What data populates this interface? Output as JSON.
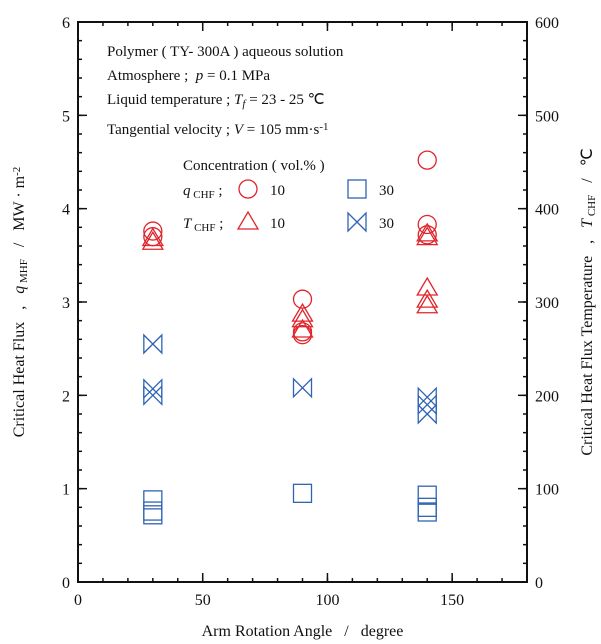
{
  "chart_data": {
    "type": "scatter",
    "xlabel": [
      {
        "text": "Arm Rotation Angle   /   degree"
      }
    ],
    "ylabel": [
      {
        "text": "Critical Heat Flux   ,   "
      },
      {
        "text": "q",
        "italic": true
      },
      {
        "text": " MHF",
        "sub": true
      },
      {
        "text": "   /   MW · m"
      },
      {
        "text": "-2",
        "sup": true
      }
    ],
    "y2label": [
      {
        "text": "Critical Heat Flux Temperature   ,   "
      },
      {
        "text": "T",
        "italic": true
      },
      {
        "text": " CHF",
        "sub": true
      },
      {
        "text": "   /   ℃"
      }
    ],
    "xlim": [
      0,
      180
    ],
    "xticks": [
      0,
      50,
      100,
      150
    ],
    "ylim": [
      0,
      6
    ],
    "yticks": [
      0,
      1,
      2,
      3,
      4,
      5,
      6
    ],
    "y2lim": [
      0,
      600
    ],
    "y2ticks": [
      0,
      100,
      200,
      300,
      400,
      500,
      600
    ],
    "minor_ticks": {
      "x": 10,
      "y": 0.2,
      "y2": 20
    },
    "annotations": [
      [
        {
          "text": "Polymer ( TY- 300A ) aqueous solution"
        }
      ],
      [
        {
          "text": "Atmosphere ;  "
        },
        {
          "text": "p",
          "italic": true
        },
        {
          "text": " = 0.1 MPa"
        }
      ],
      [
        {
          "text": "Liquid temperature ; "
        },
        {
          "text": "T",
          "italic": true
        },
        {
          "text": "f",
          "italic": true,
          "sub": true
        },
        {
          "text": " = 23 - 25 ℃"
        }
      ],
      [
        {
          "text": "Tangential velocity ; "
        },
        {
          "text": "V",
          "italic": true
        },
        {
          "text": " = 105 mm·s"
        },
        {
          "text": "-1",
          "sup": true
        }
      ]
    ],
    "legend_title": "Concentration ( vol.% )",
    "groups": [
      {
        "label": [
          {
            "text": "q",
            "italic": true
          },
          {
            "text": " CHF",
            "sub": true
          },
          {
            "text": " ;"
          }
        ],
        "series": [
          {
            "name": "10",
            "marker": "circle",
            "color": "#e0242b",
            "axis": "y",
            "x": [
              30,
              30,
              90,
              90,
              90,
              140,
              140,
              140
            ],
            "values": [
              3.7,
              3.76,
              3.03,
              2.68,
              2.65,
              4.52,
              3.83,
              3.72
            ]
          },
          {
            "name": "30",
            "marker": "square",
            "color": "#2f64b4",
            "axis": "y",
            "x": [
              30,
              30,
              30,
              90,
              140,
              140,
              140
            ],
            "values": [
              0.88,
              0.76,
              0.72,
              0.95,
              0.93,
              0.8,
              0.75
            ]
          }
        ]
      },
      {
        "label": [
          {
            "text": "T",
            "italic": true
          },
          {
            "text": " CHF",
            "sub": true
          },
          {
            "text": " ;"
          }
        ],
        "series": [
          {
            "name": "10",
            "marker": "triangle",
            "color": "#e0242b",
            "axis": "y2",
            "x": [
              30,
              30,
              90,
              90,
              90,
              140,
              140,
              140,
              140,
              140
            ],
            "values": [
              368,
              364,
              287,
              281,
              270,
              373,
              369,
              315,
              302,
              296
            ]
          },
          {
            "name": "30",
            "marker": "bowtie",
            "color": "#2f64b4",
            "axis": "y2",
            "x": [
              30,
              30,
              30,
              90,
              140,
              140,
              140
            ],
            "values": [
              255,
              207,
              200,
              208,
              198,
              190,
              180
            ]
          }
        ]
      }
    ]
  }
}
